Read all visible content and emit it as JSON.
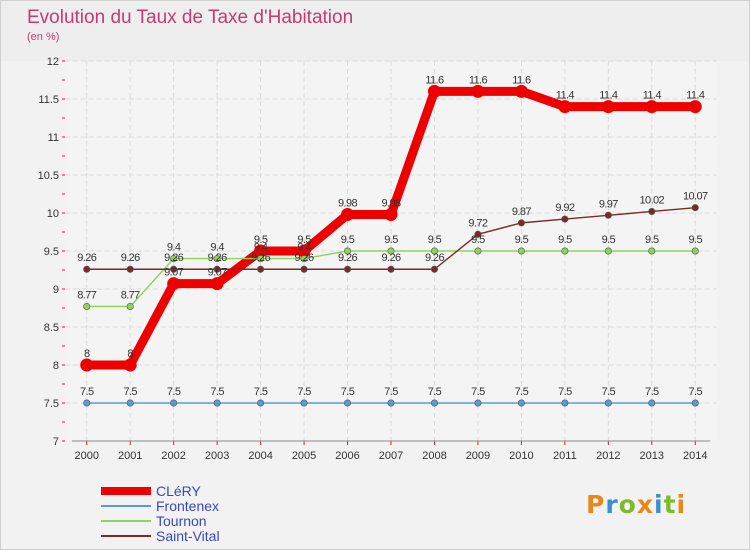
{
  "header": {
    "title": "Evolution du Taux de Taxe d'Habitation",
    "subtitle": "(en %)"
  },
  "logo": {
    "text": "Proxiti"
  },
  "chart_data": {
    "type": "line",
    "title": "Evolution du Taux de Taxe d'Habitation",
    "subtitle": "(en %)",
    "xlabel": "",
    "ylabel": "",
    "x": [
      "2000",
      "2001",
      "2002",
      "2003",
      "2004",
      "2005",
      "2006",
      "2007",
      "2008",
      "2009",
      "2010",
      "2011",
      "2012",
      "2013",
      "2014"
    ],
    "ylim": [
      7,
      12
    ],
    "yticks": [
      "7",
      "7.5",
      "8",
      "8.5",
      "9",
      "9.5",
      "10",
      "10.5",
      "11",
      "11.5",
      "12"
    ],
    "grid": true,
    "legend": "bottom-left",
    "series": [
      {
        "name": "CLéRY",
        "color": "#ee0000",
        "values": [
          8,
          8,
          9.07,
          9.07,
          9.5,
          9.5,
          9.98,
          9.98,
          11.6,
          11.6,
          11.6,
          11.4,
          11.4,
          11.4,
          11.4
        ],
        "labels": [
          "8",
          "8",
          "9.07",
          "9.07",
          "9.5",
          "9.5",
          "9.98",
          "9.98",
          "11.6",
          "11.6",
          "11.6",
          "11.4",
          "11.4",
          "11.4",
          "11.4"
        ]
      },
      {
        "name": "Frontenex",
        "color": "#5b9bd5",
        "values": [
          7.5,
          7.5,
          7.5,
          7.5,
          7.5,
          7.5,
          7.5,
          7.5,
          7.5,
          7.5,
          7.5,
          7.5,
          7.5,
          7.5,
          7.5
        ],
        "labels": [
          "7.5",
          "7.5",
          "7.5",
          "7.5",
          "7.5",
          "7.5",
          "7.5",
          "7.5",
          "7.5",
          "7.5",
          "7.5",
          "7.5",
          "7.5",
          "7.5",
          "7.5"
        ]
      },
      {
        "name": "Tournon",
        "color": "#8fd35a",
        "values": [
          8.77,
          8.77,
          9.4,
          9.4,
          9.4,
          9.4,
          9.5,
          9.5,
          9.5,
          9.5,
          9.5,
          9.5,
          9.5,
          9.5,
          9.5
        ],
        "labels": [
          "8.77",
          "8.77",
          "9.4",
          "9.4",
          "9.4",
          "9.4",
          "9.5",
          "9.5",
          "9.5",
          "9.5",
          "9.5",
          "9.5",
          "9.5",
          "9.5",
          "9.5"
        ]
      },
      {
        "name": "Saint-Vital",
        "color": "#7a2a2a",
        "values": [
          9.26,
          9.26,
          9.26,
          9.26,
          9.26,
          9.26,
          9.26,
          9.26,
          9.26,
          9.72,
          9.87,
          9.92,
          9.97,
          10.02,
          10.07
        ],
        "labels": [
          "9.26",
          "9.26",
          "9.26",
          "9.26",
          "9.26",
          "9.26",
          "9.26",
          "9.26",
          "9.26",
          "9.72",
          "9.87",
          "9.92",
          "9.97",
          "10.02",
          "10.07"
        ]
      }
    ]
  }
}
